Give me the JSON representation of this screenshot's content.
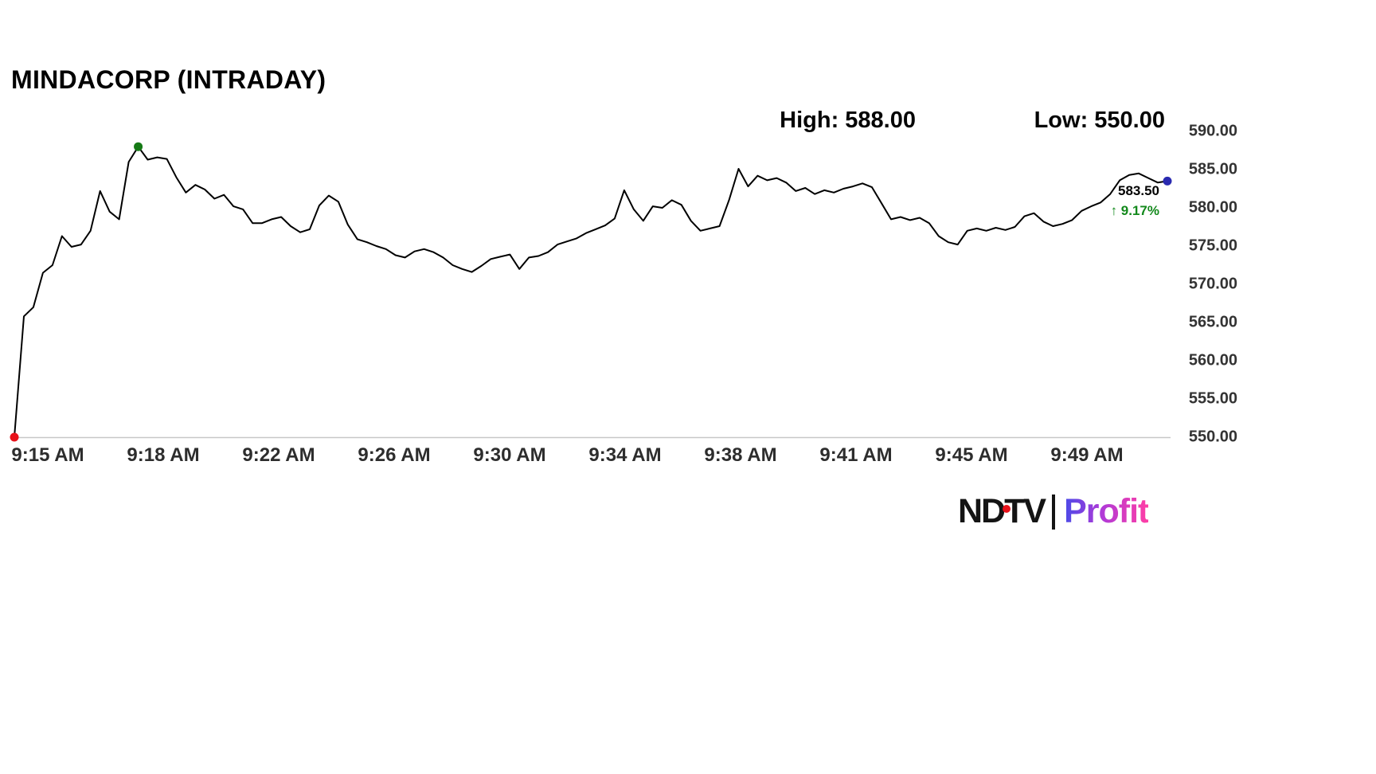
{
  "header": {
    "high_label": "High: 588.00",
    "low_label": "Low: 550.00"
  },
  "annotation": {
    "price": "583.50",
    "change": "↑ 9.17%",
    "change_color": "#13891c"
  },
  "logo": {
    "ndtv": "NDTV",
    "profit": "Profit"
  },
  "chart_data": {
    "type": "line",
    "title": "MINDACORP (INTRADAY)",
    "high": 588.0,
    "low": 550.0,
    "last": 583.5,
    "change_pct": 9.17,
    "ylim": [
      550,
      590
    ],
    "line_color": "#000000",
    "grid": false,
    "legend": false,
    "axis_line_color": "#c8c8c8",
    "markers": {
      "start_color": "#e8111a",
      "peak_color": "#157a15",
      "end_color": "#2a2ab0"
    },
    "x_tick_labels": [
      "9:15 AM",
      "9:18 AM",
      "9:22 AM",
      "9:26 AM",
      "9:30 AM",
      "9:34 AM",
      "9:38 AM",
      "9:41 AM",
      "9:45 AM",
      "9:49 AM"
    ],
    "y_tick_labels": [
      "590.00",
      "585.00",
      "580.00",
      "575.00",
      "570.00",
      "565.00",
      "560.00",
      "555.00",
      "550.00"
    ],
    "values": [
      550.0,
      565.8,
      567.0,
      571.5,
      572.5,
      576.3,
      574.9,
      575.2,
      577.0,
      582.2,
      579.5,
      578.5,
      586.0,
      588.0,
      586.3,
      586.6,
      586.4,
      584.0,
      582.0,
      583.0,
      582.4,
      581.2,
      581.7,
      580.2,
      579.8,
      578.0,
      578.0,
      578.5,
      578.8,
      577.6,
      576.8,
      577.2,
      580.3,
      581.6,
      580.8,
      577.8,
      575.9,
      575.5,
      575.0,
      574.6,
      573.8,
      573.5,
      574.3,
      574.6,
      574.2,
      573.5,
      572.5,
      572.0,
      571.6,
      572.4,
      573.3,
      573.6,
      573.9,
      572.0,
      573.5,
      573.7,
      574.2,
      575.2,
      575.6,
      576.0,
      576.7,
      577.2,
      577.7,
      578.6,
      582.3,
      579.8,
      578.3,
      580.2,
      580.0,
      581.0,
      580.4,
      578.3,
      577.0,
      577.3,
      577.6,
      581.0,
      585.1,
      582.8,
      584.2,
      583.6,
      583.9,
      583.3,
      582.2,
      582.6,
      581.8,
      582.3,
      582.0,
      582.5,
      582.8,
      583.2,
      582.7,
      580.6,
      578.5,
      578.8,
      578.4,
      578.7,
      578.0,
      576.3,
      575.5,
      575.2,
      577.0,
      577.3,
      577.0,
      577.4,
      577.1,
      577.5,
      578.9,
      579.3,
      578.2,
      577.6,
      577.9,
      578.4,
      579.6,
      580.2,
      580.7,
      581.8,
      583.6,
      584.3,
      584.5,
      583.9,
      583.3,
      583.5
    ]
  }
}
